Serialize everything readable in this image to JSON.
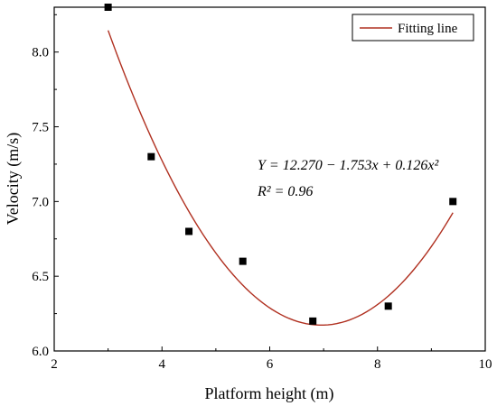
{
  "chart_data": {
    "type": "scatter",
    "xlabel": "Platform height (m)",
    "ylabel": "Velocity (m/s)",
    "xlim": [
      2,
      10
    ],
    "ylim": [
      6.0,
      8.3
    ],
    "xticks": [
      2,
      4,
      6,
      8,
      10
    ],
    "yticks": [
      6.0,
      6.5,
      7.0,
      7.5,
      8.0
    ],
    "xtick_labels": [
      "2",
      "4",
      "6",
      "8",
      "10"
    ],
    "ytick_labels": [
      "6.0",
      "6.5",
      "7.0",
      "7.5",
      "8.0"
    ],
    "grid": false,
    "legend_position": "top-right",
    "series": [
      {
        "kind": "points",
        "x": [
          3.0,
          3.8,
          4.5,
          5.5,
          6.8,
          8.2,
          9.4
        ],
        "y": [
          8.3,
          7.3,
          6.8,
          6.6,
          6.2,
          6.3,
          7.0
        ],
        "color": "#000000"
      },
      {
        "kind": "fit",
        "name": "Fitting line",
        "equation": "Y = 12.270 − 1.753x + 0.126x²",
        "coefficients": [
          12.27,
          -1.753,
          0.126
        ],
        "x_range": [
          3.0,
          9.4
        ],
        "color": "#b03020"
      }
    ],
    "annotations": [
      "Y = 12.270 − 1.753x + 0.126x²",
      "R² = 0.96"
    ]
  }
}
